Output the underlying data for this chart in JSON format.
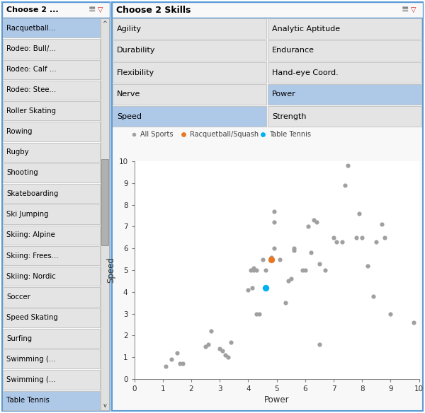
{
  "fig_width": 6.0,
  "fig_height": 5.84,
  "bg_color": "#ffffff",
  "left_panel": {
    "title": "Choose 2 ...",
    "items": [
      "Racquetball...",
      "Rodeo: Bull/...",
      "Rodeo: Calf ...",
      "Rodeo: Stee...",
      "Roller Skating",
      "Rowing",
      "Rugby",
      "Shooting",
      "Skateboarding",
      "Ski Jumping",
      "Skiing: Alpine",
      "Skiing: Frees...",
      "Skiing: Nordic",
      "Soccer",
      "Speed Skating",
      "Surfing",
      "Swimming (...",
      "Swimming (...",
      "Table Tennis"
    ],
    "selected": [
      "Racquetball...",
      "Table Tennis"
    ],
    "selected_color": "#aec8e8",
    "item_bg": "#e4e4e4",
    "item_border": "#c0c0c0",
    "border_color": "#5b9bd5"
  },
  "right_panel": {
    "skills_title": "Choose 2 Skills",
    "skills_left": [
      "Agility",
      "Durability",
      "Flexibility",
      "Nerve",
      "Speed"
    ],
    "skills_right": [
      "Analytic Aptitude",
      "Endurance",
      "Hand-eye Coord.",
      "Power",
      "Strength"
    ],
    "selected_left": [
      "Speed"
    ],
    "selected_right": [
      "Power"
    ],
    "selected_color": "#aec8e8",
    "item_bg": "#e4e4e4",
    "item_border": "#c0c0c0",
    "border_color": "#5b9bd5"
  },
  "scatter": {
    "xlabel": "Power",
    "ylabel": "Speed",
    "xlim": [
      0,
      10
    ],
    "ylim": [
      0,
      10
    ],
    "xticks": [
      0,
      1,
      2,
      3,
      4,
      5,
      6,
      7,
      8,
      9,
      10
    ],
    "yticks": [
      0,
      1,
      2,
      3,
      4,
      5,
      6,
      7,
      8,
      9,
      10
    ],
    "all_sports_color": "#a0a0a0",
    "racquet_color": "#e87722",
    "tennis_color": "#00b0f0",
    "legend_labels": [
      "All Sports",
      "Racquetball/Squash",
      "Table Tennis"
    ],
    "all_sports_xy": [
      [
        1.1,
        0.6
      ],
      [
        1.3,
        0.9
      ],
      [
        1.5,
        1.2
      ],
      [
        1.6,
        0.7
      ],
      [
        1.7,
        0.7
      ],
      [
        2.5,
        1.5
      ],
      [
        2.6,
        1.6
      ],
      [
        2.7,
        2.2
      ],
      [
        3.0,
        1.4
      ],
      [
        3.1,
        1.3
      ],
      [
        3.2,
        1.1
      ],
      [
        3.3,
        1.0
      ],
      [
        3.4,
        1.7
      ],
      [
        4.0,
        4.1
      ],
      [
        4.1,
        5.0
      ],
      [
        4.2,
        5.0
      ],
      [
        4.2,
        5.1
      ],
      [
        4.3,
        5.0
      ],
      [
        4.3,
        3.0
      ],
      [
        4.4,
        3.0
      ],
      [
        4.5,
        5.5
      ],
      [
        4.6,
        5.0
      ],
      [
        4.8,
        5.6
      ],
      [
        4.9,
        6.0
      ],
      [
        4.9,
        7.2
      ],
      [
        4.9,
        7.7
      ],
      [
        5.1,
        5.5
      ],
      [
        5.3,
        3.5
      ],
      [
        5.4,
        4.5
      ],
      [
        5.5,
        4.6
      ],
      [
        5.6,
        5.9
      ],
      [
        5.6,
        6.0
      ],
      [
        5.9,
        5.0
      ],
      [
        6.0,
        5.0
      ],
      [
        6.1,
        7.0
      ],
      [
        6.2,
        5.8
      ],
      [
        6.3,
        7.3
      ],
      [
        6.4,
        7.2
      ],
      [
        6.5,
        5.3
      ],
      [
        6.7,
        5.0
      ],
      [
        7.0,
        6.5
      ],
      [
        7.1,
        6.3
      ],
      [
        7.3,
        6.3
      ],
      [
        7.4,
        8.9
      ],
      [
        7.5,
        9.8
      ],
      [
        7.8,
        6.5
      ],
      [
        7.9,
        7.6
      ],
      [
        8.0,
        6.5
      ],
      [
        8.2,
        5.2
      ],
      [
        8.4,
        3.8
      ],
      [
        8.5,
        6.3
      ],
      [
        8.7,
        7.1
      ],
      [
        8.8,
        6.5
      ],
      [
        9.0,
        3.0
      ],
      [
        9.8,
        2.6
      ],
      [
        6.5,
        1.6
      ],
      [
        4.15,
        4.2
      ]
    ],
    "racquet_xy": [
      [
        4.8,
        5.5
      ]
    ],
    "tennis_xy": [
      [
        4.6,
        4.2
      ]
    ]
  }
}
